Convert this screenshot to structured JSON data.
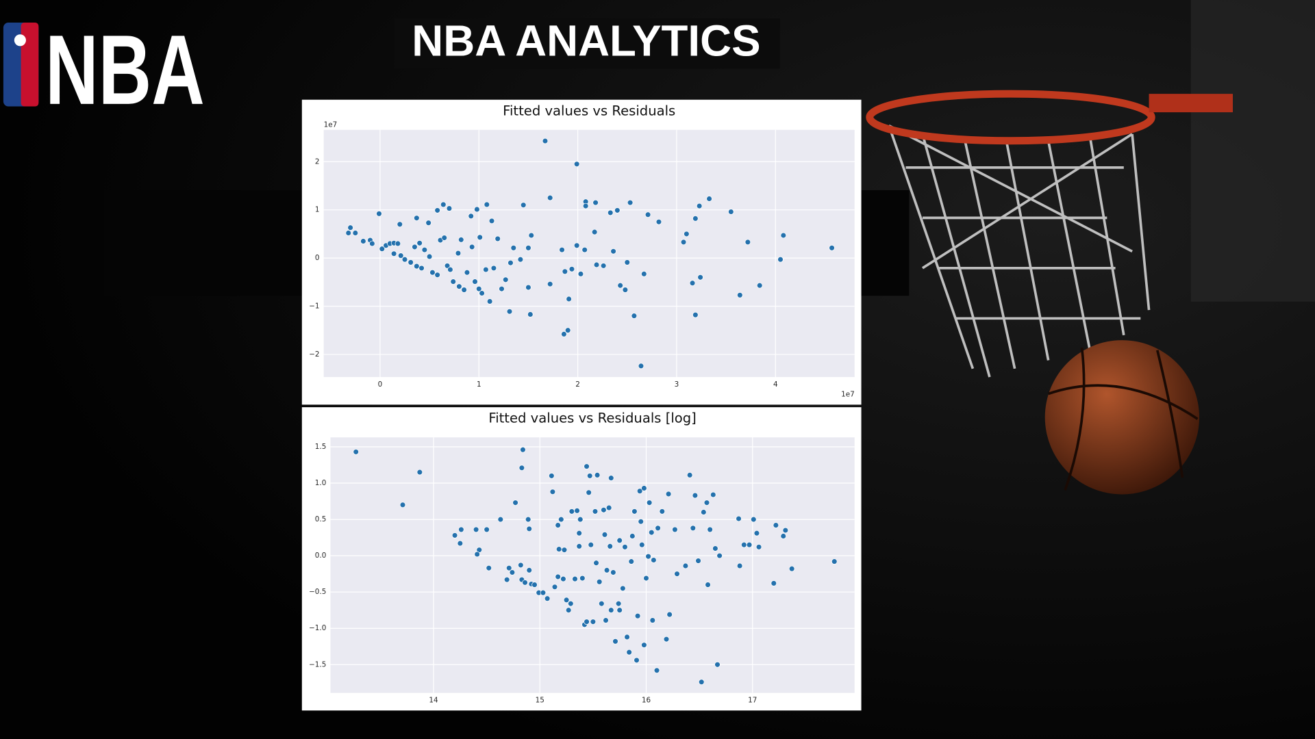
{
  "header": {
    "logo": "NBA",
    "title": "NBA ANALYTICS"
  },
  "chart_data": [
    {
      "type": "scatter",
      "title": "Fitted values vs Residuals",
      "color": "#2471ad",
      "grid": true,
      "x_offset_label": "1e7",
      "y_offset_label": "1e7",
      "xlim": [
        -0.57,
        4.8
      ],
      "ylim": [
        -2.47,
        2.66
      ],
      "xticks": [
        0,
        1,
        2,
        3,
        4
      ],
      "yticks": [
        {
          "value": -2,
          "label": "−2"
        },
        {
          "value": -1,
          "label": "−1"
        },
        0,
        1,
        2
      ],
      "x": [
        -0.32,
        -0.3,
        -0.25,
        -0.17,
        -0.1,
        -0.08,
        -0.01,
        0.02,
        0.06,
        0.1,
        0.14,
        0.18,
        0.2,
        0.14,
        0.21,
        0.25,
        0.31,
        0.37,
        0.42,
        0.37,
        0.49,
        0.58,
        0.64,
        0.7,
        0.35,
        0.4,
        0.45,
        0.5,
        0.53,
        0.58,
        0.61,
        0.65,
        0.68,
        0.71,
        0.74,
        0.8,
        0.85,
        0.79,
        0.82,
        0.88,
        0.92,
        0.98,
        1.08,
        0.93,
        1.01,
        0.96,
        1.0,
        1.03,
        1.11,
        1.07,
        1.13,
        1.15,
        1.19,
        1.23,
        1.27,
        1.31,
        1.32,
        1.35,
        1.42,
        1.45,
        1.5,
        1.5,
        1.52,
        1.53,
        1.67,
        1.72,
        1.72,
        1.84,
        1.87,
        1.86,
        1.9,
        1.91,
        1.94,
        1.99,
        1.99,
        2.03,
        2.07,
        2.08,
        2.08,
        2.18,
        2.17,
        2.19,
        2.26,
        2.33,
        2.36,
        2.4,
        2.43,
        2.48,
        2.5,
        2.53,
        2.57,
        2.64,
        2.67,
        2.71,
        2.82,
        3.07,
        3.1,
        3.16,
        3.19,
        3.19,
        3.23,
        3.24,
        3.33,
        3.55,
        3.64,
        3.72,
        3.84,
        4.05,
        4.08,
        4.57
      ],
      "values": [
        0.52,
        0.63,
        0.52,
        0.35,
        0.37,
        0.3,
        0.92,
        0.19,
        0.26,
        0.3,
        0.31,
        0.3,
        0.7,
        0.09,
        0.05,
        -0.03,
        -0.09,
        -0.17,
        -0.21,
        0.83,
        0.73,
        0.99,
        1.11,
        1.03,
        0.23,
        0.31,
        0.17,
        0.03,
        -0.3,
        -0.35,
        0.37,
        0.42,
        -0.16,
        -0.24,
        -0.49,
        -0.59,
        -0.66,
        0.1,
        0.38,
        -0.3,
        0.87,
        1.01,
        1.11,
        0.23,
        0.43,
        -0.49,
        -0.64,
        -0.73,
        -0.9,
        -0.24,
        0.77,
        -0.21,
        0.4,
        -0.64,
        -0.45,
        -1.11,
        -0.1,
        0.21,
        -0.03,
        1.1,
        0.21,
        -0.61,
        -1.17,
        0.47,
        2.43,
        1.25,
        -0.54,
        0.17,
        -0.28,
        -1.58,
        -1.5,
        -0.85,
        -0.23,
        1.95,
        0.26,
        -0.33,
        0.17,
        1.17,
        1.08,
        1.15,
        0.54,
        -0.14,
        -0.16,
        0.94,
        0.14,
        0.99,
        -0.57,
        -0.66,
        -0.09,
        1.15,
        -1.2,
        -2.24,
        -0.33,
        0.9,
        0.75,
        0.33,
        0.5,
        -0.52,
        0.82,
        -1.18,
        1.08,
        -0.4,
        1.23,
        0.96,
        -0.77,
        0.33,
        -0.57,
        -0.03,
        0.47,
        0.21
      ]
    },
    {
      "type": "scatter",
      "title": "Fitted values vs Residuals [log]",
      "color": "#2471ad",
      "grid": true,
      "xlim": [
        13.03,
        17.96
      ],
      "ylim": [
        -1.89,
        1.63
      ],
      "xticks": [
        14,
        15,
        16,
        17
      ],
      "yticks": [
        {
          "value": -1.5,
          "label": "−1.5"
        },
        {
          "value": -1.0,
          "label": "−1.0"
        },
        {
          "value": -0.5,
          "label": "−0.5"
        },
        {
          "value": 0,
          "label": "0.0"
        },
        0.5,
        {
          "value": 1.0,
          "label": "1.0"
        },
        1.5
      ],
      "x": [
        13.27,
        13.71,
        13.87,
        14.2,
        14.26,
        14.25,
        14.4,
        14.43,
        14.41,
        14.5,
        14.52,
        14.63,
        14.69,
        14.71,
        14.74,
        14.77,
        14.82,
        14.83,
        14.84,
        14.83,
        14.86,
        14.89,
        14.9,
        14.92,
        14.9,
        14.95,
        14.99,
        15.03,
        15.07,
        15.11,
        15.12,
        15.14,
        15.17,
        15.17,
        15.18,
        15.2,
        15.22,
        15.23,
        15.25,
        15.27,
        15.29,
        15.3,
        15.33,
        15.35,
        15.37,
        15.37,
        15.38,
        15.4,
        15.42,
        15.44,
        15.44,
        15.46,
        15.47,
        15.48,
        15.5,
        15.52,
        15.53,
        15.54,
        15.56,
        15.58,
        15.6,
        15.61,
        15.62,
        15.63,
        15.65,
        15.66,
        15.67,
        15.67,
        15.69,
        15.71,
        15.74,
        15.75,
        15.75,
        15.78,
        15.8,
        15.82,
        15.84,
        15.86,
        15.87,
        15.89,
        15.91,
        15.92,
        15.94,
        15.95,
        15.96,
        15.98,
        15.98,
        16.0,
        16.02,
        16.03,
        16.05,
        16.06,
        16.07,
        16.1,
        16.11,
        16.15,
        16.19,
        16.21,
        16.22,
        16.27,
        16.29,
        16.37,
        16.41,
        16.44,
        16.46,
        16.49,
        16.52,
        16.54,
        16.57,
        16.58,
        16.6,
        16.63,
        16.65,
        16.67,
        16.69,
        16.87,
        16.88,
        16.92,
        16.97,
        17.01,
        17.04,
        17.06,
        17.2,
        17.22,
        17.29,
        17.31,
        17.37,
        17.77
      ],
      "values": [
        1.43,
        0.7,
        1.15,
        0.28,
        0.36,
        0.17,
        0.36,
        0.08,
        0.02,
        0.36,
        -0.17,
        0.5,
        -0.33,
        -0.17,
        -0.23,
        0.73,
        -0.13,
        -0.33,
        1.46,
        1.21,
        -0.37,
        0.5,
        0.37,
        -0.39,
        -0.2,
        -0.4,
        -0.51,
        -0.51,
        -0.59,
        1.1,
        0.88,
        -0.43,
        0.42,
        -0.29,
        0.09,
        0.5,
        -0.32,
        0.08,
        -0.61,
        -0.75,
        -0.66,
        0.61,
        -0.32,
        0.62,
        0.31,
        0.13,
        0.5,
        -0.31,
        -0.95,
        1.23,
        -0.91,
        0.87,
        1.1,
        0.15,
        -0.91,
        0.61,
        -0.1,
        1.11,
        -0.36,
        -0.66,
        0.63,
        0.29,
        -0.89,
        -0.2,
        0.66,
        0.13,
        -0.75,
        1.07,
        -0.23,
        -1.18,
        -0.66,
        0.21,
        -0.75,
        -0.45,
        0.12,
        -1.12,
        -1.33,
        -0.08,
        0.27,
        0.61,
        -1.44,
        -0.83,
        0.89,
        0.47,
        0.15,
        -1.23,
        0.93,
        -0.31,
        -0.01,
        0.73,
        0.32,
        -0.89,
        -0.06,
        -1.58,
        0.38,
        0.61,
        -1.15,
        0.85,
        -0.81,
        0.36,
        -0.25,
        -0.14,
        1.11,
        0.38,
        0.83,
        -0.07,
        -1.74,
        0.6,
        0.73,
        -0.4,
        0.36,
        0.84,
        0.1,
        -1.5,
        0.0,
        0.51,
        -0.14,
        0.15,
        0.15,
        0.5,
        0.31,
        0.12,
        -0.38,
        0.42,
        0.27,
        0.35,
        -0.18,
        -0.08
      ]
    }
  ]
}
